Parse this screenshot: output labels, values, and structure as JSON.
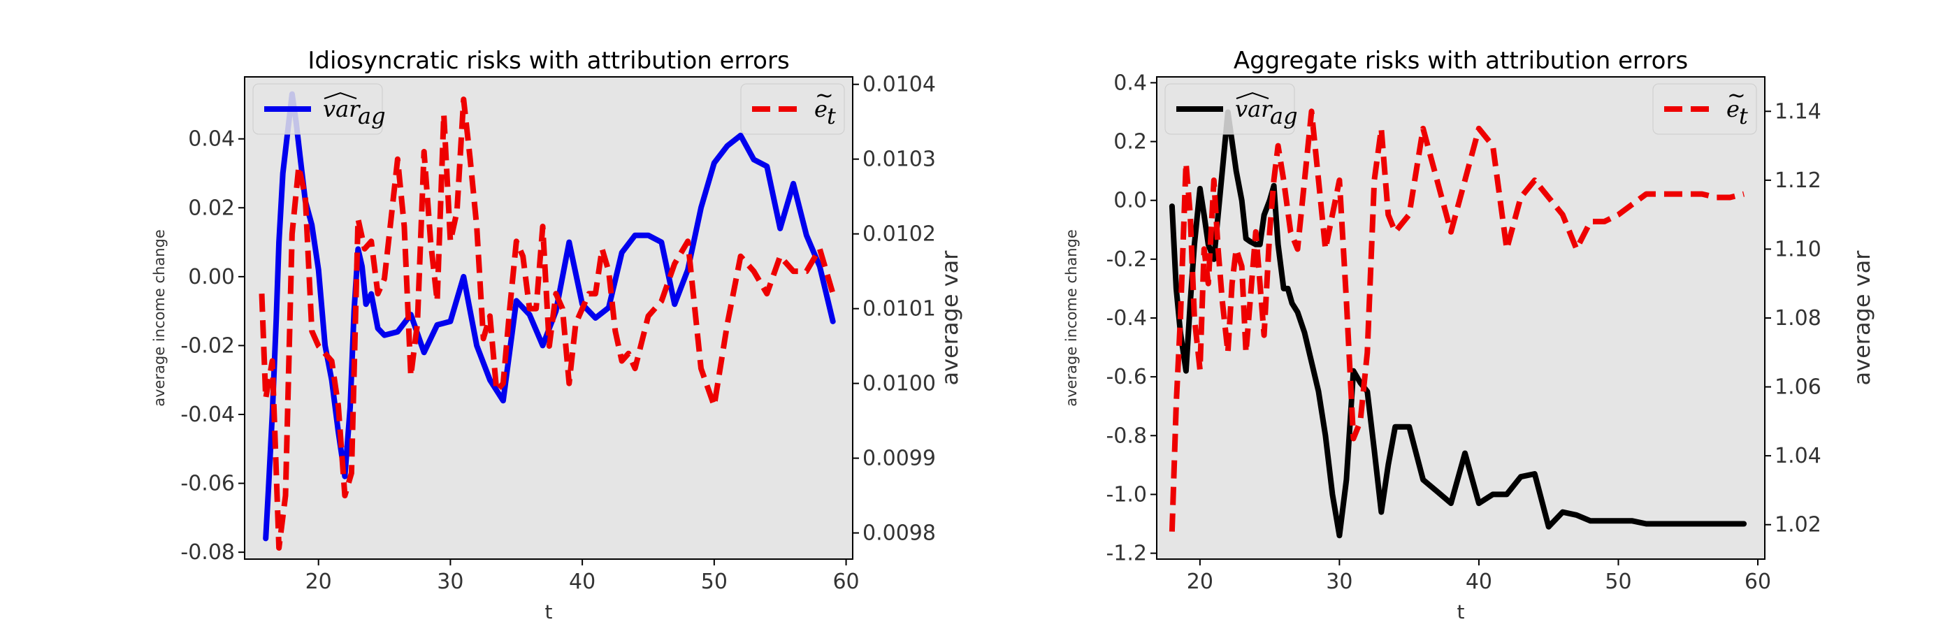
{
  "chart_data": [
    {
      "type": "line",
      "title": "Idiosyncratic risks with attribution errors",
      "xlabel": "t",
      "ylabel_left": "average income change",
      "ylabel_right": "average var",
      "xlim": [
        14.4,
        60.5
      ],
      "ylim_left": [
        -0.082,
        0.058
      ],
      "ylim_right": [
        0.009765,
        0.01041
      ],
      "x_ticks": [
        20,
        30,
        40,
        50,
        60
      ],
      "y_ticks_left": [
        -0.08,
        -0.06,
        -0.04,
        -0.02,
        0.0,
        0.02,
        0.04
      ],
      "y_tick_labels_left": [
        "-0.08",
        "-0.06",
        "-0.04",
        "-0.02",
        "0.00",
        "0.02",
        "0.04"
      ],
      "y_ticks_right": [
        0.0098,
        0.0099,
        0.01,
        0.0101,
        0.0102,
        0.0103,
        0.0104
      ],
      "y_tick_labels_right": [
        "0.0098",
        "0.0099",
        "0.0100",
        "0.0101",
        "0.0102",
        "0.0103",
        "0.0104"
      ],
      "grid": false,
      "legend_left": {
        "label": "var̂_ag",
        "placement": "top-left"
      },
      "legend_right": {
        "label": "ẽ_t",
        "placement": "top-right"
      },
      "series": [
        {
          "name": "var̂_ag",
          "axis": "left",
          "color": "#0000ee",
          "style": "solid",
          "x": [
            16,
            16.2,
            16.5,
            16.8,
            17,
            17.3,
            17.6,
            18,
            18.3,
            18.6,
            19,
            19.5,
            20,
            20.5,
            21,
            21.5,
            22,
            22.4,
            22.7,
            23,
            23.3,
            23.6,
            24,
            24.5,
            25,
            26,
            27,
            28,
            29,
            30,
            31,
            32,
            33,
            34,
            35,
            36,
            37,
            38,
            39,
            40,
            41,
            42,
            43,
            44,
            45,
            46,
            47,
            48,
            49,
            50,
            51,
            52,
            53,
            54,
            55,
            56,
            57,
            58,
            59
          ],
          "values": [
            -0.076,
            -0.062,
            -0.04,
            -0.012,
            0.01,
            0.03,
            0.04,
            0.053,
            0.045,
            0.035,
            0.022,
            0.015,
            0.002,
            -0.02,
            -0.03,
            -0.045,
            -0.058,
            -0.038,
            -0.01,
            0.008,
            0.003,
            -0.008,
            -0.005,
            -0.015,
            -0.017,
            -0.016,
            -0.011,
            -0.022,
            -0.014,
            -0.013,
            0.0,
            -0.02,
            -0.03,
            -0.036,
            -0.007,
            -0.011,
            -0.02,
            -0.01,
            0.01,
            -0.008,
            -0.012,
            -0.009,
            0.007,
            0.012,
            0.012,
            0.01,
            -0.008,
            0.002,
            0.02,
            0.033,
            0.038,
            0.041,
            0.034,
            0.032,
            0.014,
            0.027,
            0.012,
            0.003,
            -0.013
          ]
        },
        {
          "name": "ẽ_t",
          "axis": "right",
          "color": "#ee0000",
          "style": "dashed",
          "x": [
            15.7,
            16,
            16.5,
            17,
            17.5,
            18,
            18.5,
            19,
            19.5,
            20,
            20.5,
            21,
            21.5,
            22,
            22.5,
            23,
            23.5,
            24,
            24.5,
            25,
            25.5,
            26,
            26.5,
            27,
            27.5,
            28,
            28.5,
            29,
            29.5,
            30,
            30.5,
            31,
            31.5,
            32,
            32.5,
            33,
            33.5,
            34,
            34.5,
            35,
            35.5,
            36,
            36.5,
            37,
            37.5,
            38,
            38.5,
            39,
            39.5,
            40,
            40.5,
            41,
            41.5,
            42,
            42.5,
            43,
            43.5,
            44,
            45,
            46,
            47,
            48,
            49,
            50,
            51,
            52,
            53,
            54,
            55,
            56,
            57,
            58,
            59
          ],
          "values": [
            0.01012,
            0.00998,
            0.01003,
            0.00978,
            0.00985,
            0.0102,
            0.01029,
            0.01025,
            0.01007,
            0.01005,
            0.01004,
            0.01003,
            0.00997,
            0.00985,
            0.00988,
            0.01022,
            0.01018,
            0.01019,
            0.01012,
            0.01014,
            0.01022,
            0.0103,
            0.01021,
            0.01001,
            0.01008,
            0.01031,
            0.01019,
            0.01011,
            0.01036,
            0.01019,
            0.01023,
            0.01038,
            0.0103,
            0.01021,
            0.01006,
            0.01009,
            0.00999,
            0.01,
            0.0101,
            0.01019,
            0.01017,
            0.0101,
            0.0101,
            0.01021,
            0.01005,
            0.01012,
            0.0101,
            0.01,
            0.01008,
            0.0101,
            0.01012,
            0.01012,
            0.01018,
            0.01015,
            0.01007,
            0.01003,
            0.01004,
            0.01002,
            0.01009,
            0.01011,
            0.01016,
            0.01019,
            0.01002,
            0.00997,
            0.01008,
            0.01017,
            0.01015,
            0.01012,
            0.01017,
            0.01015,
            0.01015,
            0.01018,
            0.01012
          ]
        }
      ]
    },
    {
      "type": "line",
      "title": "Aggregate risks with attribution errors",
      "xlabel": "t",
      "ylabel_left": "average income change",
      "ylabel_right": "average var",
      "xlim": [
        16.9,
        60.5
      ],
      "ylim_left": [
        -1.22,
        0.42
      ],
      "ylim_right": [
        1.01,
        1.15
      ],
      "x_ticks": [
        20,
        30,
        40,
        50,
        60
      ],
      "y_ticks_left": [
        -1.2,
        -1.0,
        -0.8,
        -0.6,
        -0.4,
        -0.2,
        0.0,
        0.2,
        0.4
      ],
      "y_tick_labels_left": [
        "-1.2",
        "-1.0",
        "-0.8",
        "-0.6",
        "-0.4",
        "-0.2",
        "0.0",
        "0.2",
        "0.4"
      ],
      "y_ticks_right": [
        1.02,
        1.04,
        1.06,
        1.08,
        1.1,
        1.12,
        1.14
      ],
      "y_tick_labels_right": [
        "1.02",
        "1.04",
        "1.06",
        "1.08",
        "1.10",
        "1.12",
        "1.14"
      ],
      "grid": false,
      "legend_left": {
        "label": "var̂_ag",
        "placement": "top-left"
      },
      "legend_right": {
        "label": "ẽ_t",
        "placement": "top-right"
      },
      "series": [
        {
          "name": "var̂_ag",
          "axis": "left",
          "color": "#000000",
          "style": "solid",
          "x": [
            18,
            18.3,
            18.6,
            19,
            19.3,
            19.6,
            20,
            20.3,
            20.6,
            21,
            21.3,
            21.6,
            22,
            22.3,
            22.6,
            23,
            23.3,
            23.6,
            24,
            24.3,
            24.6,
            25,
            25.3,
            25.6,
            26,
            26.3,
            26.6,
            27,
            27.5,
            28,
            28.5,
            29,
            29.5,
            30,
            30.5,
            31,
            31.5,
            32,
            32.5,
            33,
            33.5,
            34,
            35,
            36,
            37,
            38,
            39,
            40,
            41,
            42,
            43,
            44,
            45,
            46,
            47,
            48,
            49,
            50,
            51,
            52,
            53,
            54,
            55,
            56,
            57,
            58,
            59
          ],
          "values": [
            -0.02,
            -0.3,
            -0.45,
            -0.58,
            -0.35,
            -0.15,
            0.04,
            -0.05,
            -0.15,
            -0.2,
            -0.05,
            0.1,
            0.3,
            0.2,
            0.1,
            0.0,
            -0.13,
            -0.14,
            -0.15,
            -0.15,
            -0.05,
            0.0,
            0.05,
            -0.15,
            -0.3,
            -0.3,
            -0.35,
            -0.38,
            -0.45,
            -0.55,
            -0.65,
            -0.8,
            -1.0,
            -1.14,
            -0.95,
            -0.58,
            -0.62,
            -0.65,
            -0.85,
            -1.06,
            -0.9,
            -0.77,
            -0.77,
            -0.95,
            -0.99,
            -1.03,
            -0.86,
            -1.03,
            -1.0,
            -1.0,
            -0.94,
            -0.93,
            -1.11,
            -1.06,
            -1.07,
            -1.09,
            -1.09,
            -1.09,
            -1.09,
            -1.1,
            -1.1,
            -1.1,
            -1.1,
            -1.1,
            -1.1,
            -1.1,
            -1.1
          ]
        },
        {
          "name": "ẽ_t",
          "axis": "right",
          "color": "#ee0000",
          "style": "dashed",
          "x": [
            18,
            18.3,
            18.6,
            19,
            19.3,
            19.6,
            20,
            20.3,
            20.6,
            21,
            21.3,
            21.6,
            22,
            22.3,
            22.6,
            23,
            23.3,
            23.6,
            24,
            24.3,
            24.6,
            25,
            25.3,
            25.6,
            26,
            26.5,
            27,
            27.5,
            28,
            28.5,
            29,
            29.5,
            30,
            30.5,
            31,
            31.5,
            32,
            32.5,
            33,
            33.5,
            34,
            35,
            36,
            37,
            38,
            39,
            40,
            41,
            42,
            43,
            44,
            45,
            46,
            47,
            48,
            49,
            50,
            51,
            52,
            53,
            54,
            55,
            56,
            57,
            58,
            59
          ],
          "values": [
            1.018,
            1.055,
            1.08,
            1.125,
            1.11,
            1.08,
            1.065,
            1.1,
            1.09,
            1.12,
            1.1,
            1.085,
            1.07,
            1.09,
            1.1,
            1.095,
            1.07,
            1.085,
            1.105,
            1.09,
            1.075,
            1.105,
            1.12,
            1.13,
            1.12,
            1.105,
            1.1,
            1.12,
            1.14,
            1.12,
            1.1,
            1.11,
            1.12,
            1.085,
            1.045,
            1.05,
            1.07,
            1.12,
            1.135,
            1.11,
            1.105,
            1.11,
            1.135,
            1.12,
            1.105,
            1.12,
            1.135,
            1.13,
            1.1,
            1.115,
            1.12,
            1.115,
            1.11,
            1.1,
            1.108,
            1.108,
            1.11,
            1.113,
            1.116,
            1.116,
            1.116,
            1.116,
            1.116,
            1.115,
            1.115,
            1.116
          ]
        }
      ]
    }
  ]
}
